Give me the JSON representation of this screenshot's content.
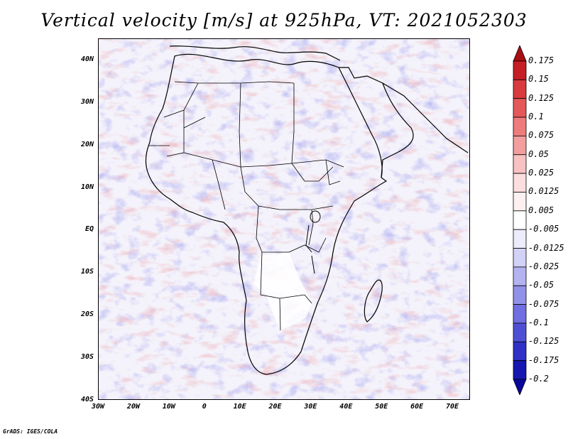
{
  "title": "Vertical velocity [m/s] at 925hPa, VT: 2021052303",
  "map": {
    "lat_range": [
      -40,
      45
    ],
    "lon_range": [
      -30,
      75
    ],
    "lat_labels": [
      "40N",
      "30N",
      "20N",
      "10N",
      "EQ",
      "10S",
      "20S",
      "30S",
      "40S"
    ],
    "lat_values": [
      40,
      30,
      20,
      10,
      0,
      -10,
      -20,
      -30,
      -40
    ],
    "lon_labels": [
      "30W",
      "20W",
      "10W",
      "0",
      "10E",
      "20E",
      "30E",
      "40E",
      "50E",
      "60E",
      "70E"
    ],
    "lon_values": [
      -30,
      -20,
      -10,
      0,
      10,
      20,
      30,
      40,
      50,
      60,
      70
    ],
    "field_colors": {
      "positive": "#e06060",
      "negative": "#6e6ee0",
      "neutral": "#ffffff"
    }
  },
  "colorbar": {
    "labels": [
      "0.175",
      "0.15",
      "0.125",
      "0.1",
      "0.075",
      "0.05",
      "0.025",
      "0.0125",
      "0.005",
      "-0.005",
      "-0.0125",
      "-0.025",
      "-0.05",
      "-0.075",
      "-0.1",
      "-0.125",
      "-0.175",
      "-0.2"
    ],
    "colors": [
      "#a80e12",
      "#c51e24",
      "#d93a3d",
      "#e5585a",
      "#ee7c7c",
      "#f39e9e",
      "#f8c2c2",
      "#fbdede",
      "#fdf0f0",
      "#ffffff",
      "#ececfb",
      "#d2d2f7",
      "#b3b3f1",
      "#9191ea",
      "#6f6fe1",
      "#4f4fd6",
      "#3030c6",
      "#1616b0",
      "#08089c"
    ]
  },
  "credit": "GrADS: IGES/COLA"
}
